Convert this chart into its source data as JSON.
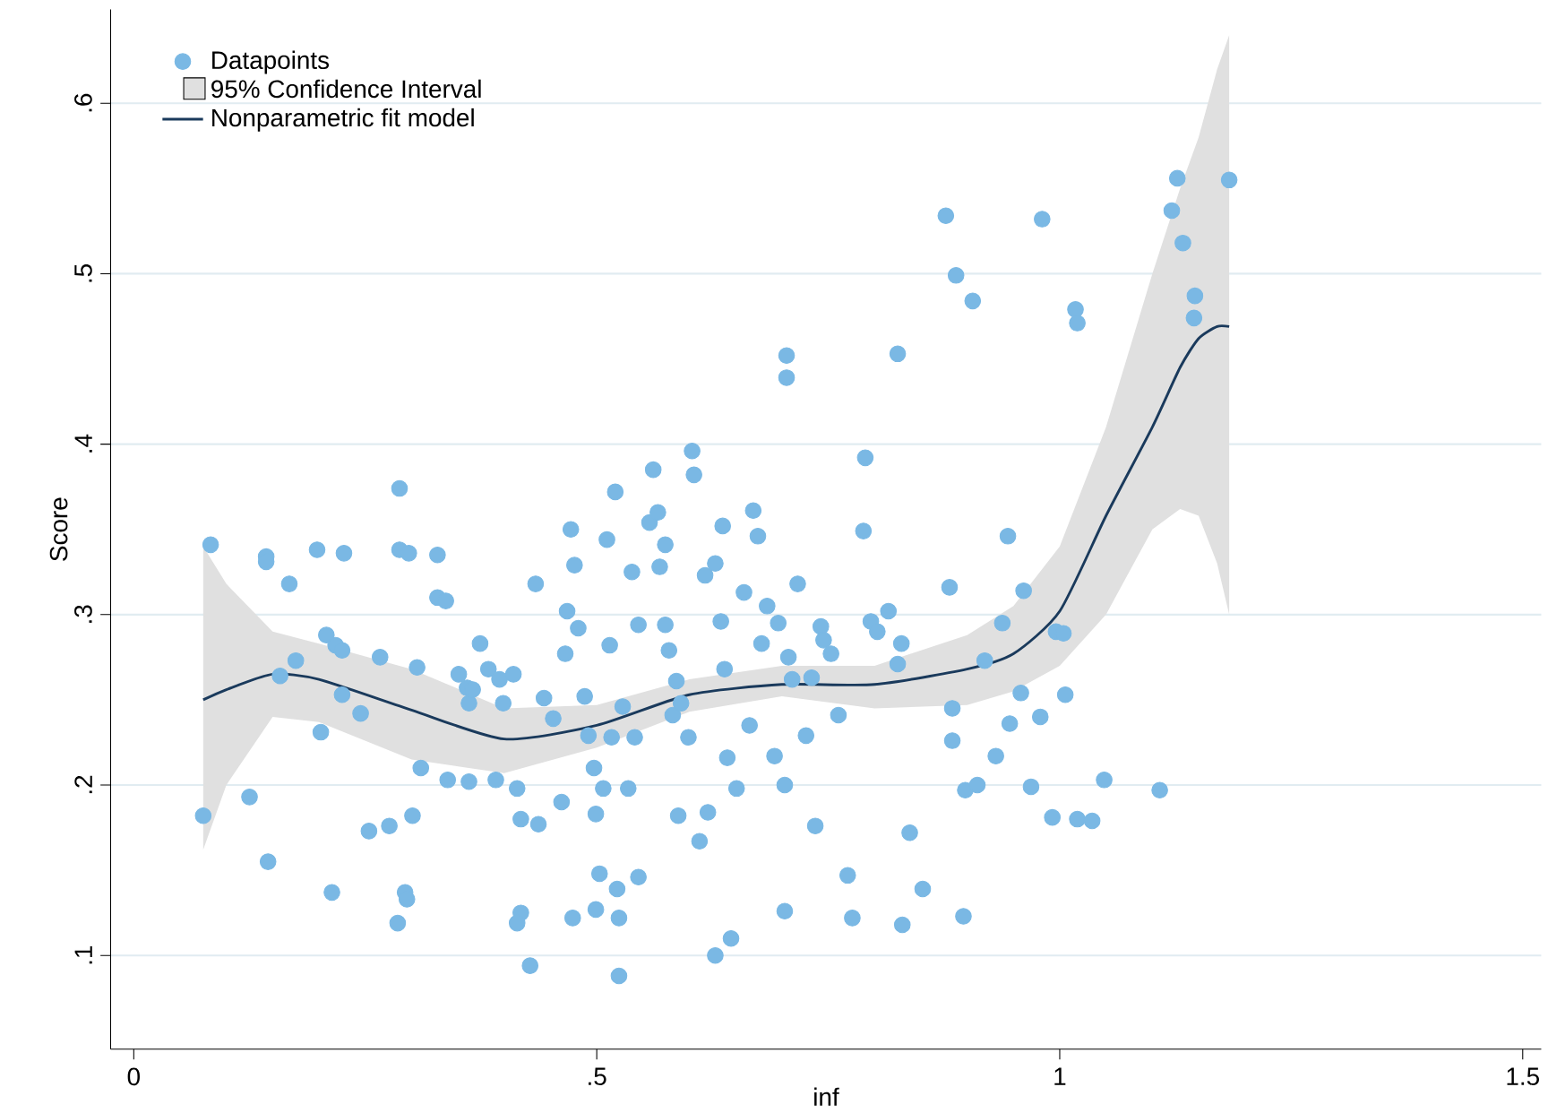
{
  "chart_data": {
    "type": "scatter",
    "xlabel": "inf",
    "ylabel": "Score",
    "xlim": [
      -0.025,
      1.52
    ],
    "ylim": [
      0.045,
      0.655
    ],
    "xticks": [
      0,
      {
        "value": 0.5,
        "label": ".5"
      },
      1,
      1.5
    ],
    "yticks": [
      {
        "value": 0.1,
        "label": ".1"
      },
      {
        "value": 0.2,
        "label": ".2"
      },
      {
        "value": 0.3,
        "label": ".3"
      },
      {
        "value": 0.4,
        "label": ".4"
      },
      {
        "value": 0.5,
        "label": ".5"
      },
      {
        "value": 0.6,
        "label": ".6"
      }
    ],
    "grid": "y",
    "legend": "top left",
    "series": [
      {
        "name": "Datapoints",
        "color": "#7ab8e4",
        "marker": "circle",
        "x": [
          0.075,
          0.083,
          0.125,
          0.143,
          0.143,
          0.145,
          0.158,
          0.168,
          0.175,
          0.198,
          0.202,
          0.208,
          0.214,
          0.218,
          0.227,
          0.225,
          0.225,
          0.245,
          0.254,
          0.266,
          0.276,
          0.287,
          0.287,
          0.297,
          0.285,
          0.293,
          0.295,
          0.301,
          0.306,
          0.31,
          0.328,
          0.328,
          0.337,
          0.339,
          0.351,
          0.36,
          0.362,
          0.362,
          0.366,
          0.374,
          0.383,
          0.391,
          0.395,
          0.399,
          0.41,
          0.414,
          0.418,
          0.418,
          0.414,
          0.428,
          0.434,
          0.437,
          0.443,
          0.453,
          0.462,
          0.466,
          0.468,
          0.472,
          0.474,
          0.476,
          0.48,
          0.487,
          0.491,
          0.497,
          0.499,
          0.499,
          0.503,
          0.507,
          0.511,
          0.514,
          0.516,
          0.52,
          0.522,
          0.524,
          0.524,
          0.528,
          0.534,
          0.538,
          0.541,
          0.545,
          0.545,
          0.557,
          0.561,
          0.566,
          0.568,
          0.574,
          0.574,
          0.578,
          0.582,
          0.586,
          0.588,
          0.591,
          0.599,
          0.603,
          0.605,
          0.611,
          0.617,
          0.62,
          0.628,
          0.634,
          0.636,
          0.638,
          0.641,
          0.645,
          0.628,
          0.651,
          0.659,
          0.665,
          0.669,
          0.674,
          0.678,
          0.684,
          0.692,
          0.696,
          0.703,
          0.705,
          0.705,
          0.707,
          0.703,
          0.711,
          0.717,
          0.726,
          0.732,
          0.736,
          0.742,
          0.745,
          0.753,
          0.761,
          0.771,
          0.776,
          0.79,
          0.788,
          0.796,
          0.803,
          0.815,
          0.825,
          0.825,
          0.829,
          0.83,
          0.838,
          0.852,
          0.877,
          0.881,
          0.884,
          0.884,
          0.888,
          0.896,
          0.898,
          0.906,
          0.911,
          0.919,
          0.931,
          0.938,
          0.944,
          0.946,
          0.958,
          0.961,
          0.969,
          0.981,
          0.992,
          0.996,
          1.006,
          1.019,
          1.035,
          1.048,
          1.108,
          1.121,
          1.127,
          1.133,
          1.146,
          1.145,
          1.183,
          1.017,
          1.019,
          0.979,
          1.004
        ],
        "values": [
          0.182,
          0.341,
          0.193,
          0.334,
          0.331,
          0.155,
          0.264,
          0.318,
          0.273,
          0.338,
          0.231,
          0.288,
          0.137,
          0.282,
          0.336,
          0.279,
          0.253,
          0.242,
          0.173,
          0.275,
          0.176,
          0.374,
          0.338,
          0.336,
          0.119,
          0.137,
          0.133,
          0.182,
          0.269,
          0.21,
          0.335,
          0.31,
          0.308,
          0.203,
          0.265,
          0.257,
          0.202,
          0.248,
          0.256,
          0.283,
          0.268,
          0.203,
          0.262,
          0.248,
          0.265,
          0.198,
          0.125,
          0.18,
          0.119,
          0.094,
          0.318,
          0.177,
          0.251,
          0.239,
          0.19,
          0.277,
          0.302,
          0.35,
          0.122,
          0.329,
          0.292,
          0.252,
          0.229,
          0.21,
          0.183,
          0.127,
          0.148,
          0.198,
          0.344,
          0.282,
          0.228,
          0.372,
          0.139,
          0.122,
          0.088,
          0.246,
          0.198,
          0.325,
          0.228,
          0.146,
          0.294,
          0.354,
          0.385,
          0.36,
          0.328,
          0.341,
          0.294,
          0.279,
          0.241,
          0.261,
          0.182,
          0.248,
          0.228,
          0.396,
          0.382,
          0.167,
          0.323,
          0.184,
          0.33,
          0.296,
          0.352,
          0.268,
          0.216,
          0.11,
          0.1,
          0.198,
          0.313,
          0.235,
          0.361,
          0.346,
          0.283,
          0.305,
          0.217,
          0.295,
          0.2,
          0.452,
          0.439,
          0.275,
          0.126,
          0.262,
          0.318,
          0.229,
          0.263,
          0.176,
          0.293,
          0.285,
          0.277,
          0.241,
          0.147,
          0.122,
          0.392,
          0.349,
          0.296,
          0.29,
          0.302,
          0.453,
          0.271,
          0.283,
          0.118,
          0.172,
          0.139,
          0.534,
          0.316,
          0.245,
          0.226,
          0.499,
          0.123,
          0.197,
          0.484,
          0.2,
          0.273,
          0.217,
          0.295,
          0.346,
          0.236,
          0.254,
          0.314,
          0.199,
          0.532,
          0.181,
          0.29,
          0.253,
          0.18,
          0.179,
          0.203,
          0.197,
          0.537,
          0.556,
          0.518,
          0.487,
          0.474,
          0.555,
          0.479,
          0.471,
          0.24,
          0.289
        ]
      },
      {
        "type": "line",
        "name": "Nonparametric fit model",
        "color": "#1a3a5c",
        "marker": "none",
        "x": [
          0.075,
          0.1,
          0.15,
          0.2,
          0.3,
          0.4,
          0.5,
          0.6,
          0.7,
          0.8,
          0.9,
          0.95,
          1.0,
          1.05,
          1.1,
          1.13,
          1.15,
          1.17,
          1.183
        ],
        "values": [
          0.25,
          0.256,
          0.265,
          0.262,
          0.244,
          0.227,
          0.235,
          0.253,
          0.259,
          0.259,
          0.268,
          0.277,
          0.302,
          0.358,
          0.41,
          0.445,
          0.462,
          0.469,
          0.469
        ],
        "lower": [
          0.162,
          0.2,
          0.24,
          0.237,
          0.215,
          0.207,
          0.222,
          0.243,
          0.252,
          0.245,
          0.247,
          0.255,
          0.27,
          0.3,
          0.35,
          0.362,
          0.358,
          0.33,
          0.3
        ],
        "upper": [
          0.34,
          0.318,
          0.29,
          0.283,
          0.268,
          0.245,
          0.247,
          0.262,
          0.27,
          0.27,
          0.288,
          0.305,
          0.34,
          0.41,
          0.5,
          0.55,
          0.58,
          0.62,
          0.64
        ]
      }
    ],
    "annotations": [
      "95% Confidence Interval"
    ]
  }
}
